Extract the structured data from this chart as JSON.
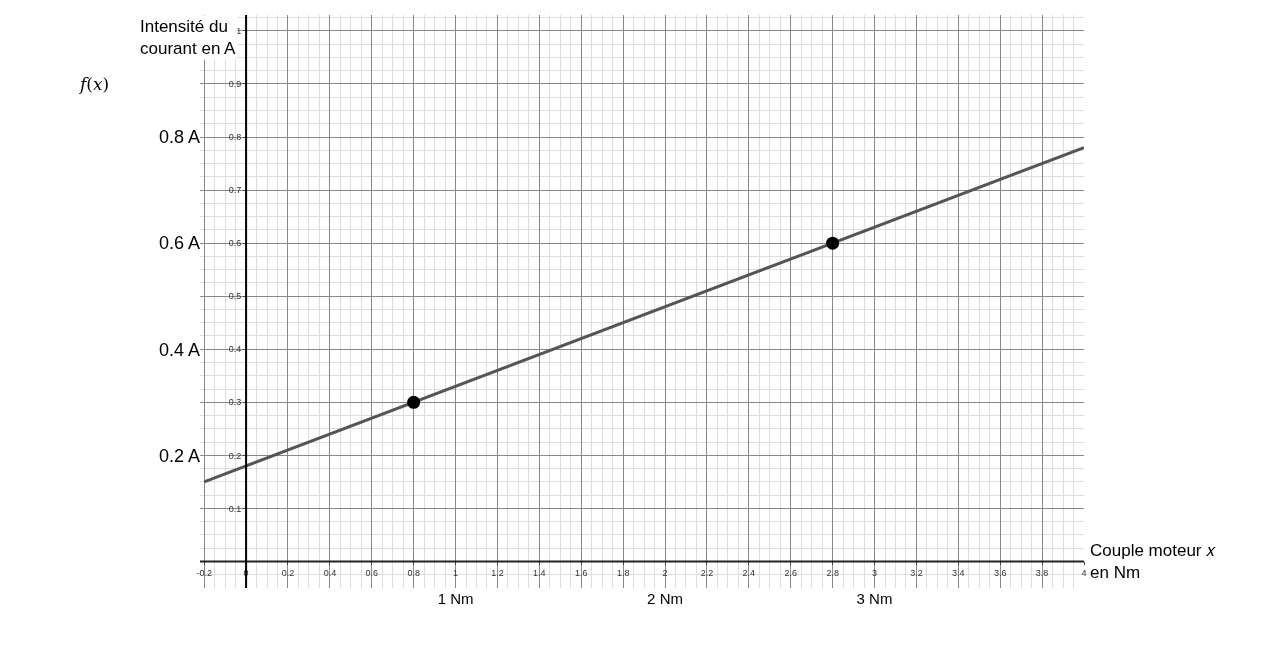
{
  "chart_data": {
    "type": "line",
    "xlabel": "Couple moteur 𝑥\nen Nm",
    "ylabel": "Intensité du\ncourant en A",
    "annotations": [
      "𝑓(𝑥)"
    ],
    "series": [
      {
        "x": [
          -0.2,
          4.0
        ],
        "values": [
          0.15,
          0.78
        ],
        "color": "#555555",
        "marker": "none",
        "line_style": "solid"
      },
      {
        "type": "scatter",
        "x": [
          0.8,
          2.8
        ],
        "values": [
          0.3,
          0.6
        ],
        "color": "#000000",
        "marker": "circle"
      }
    ],
    "xlim": [
      -0.22,
      4.0
    ],
    "ylim": [
      -0.05,
      1.03
    ],
    "xticks": [
      {
        "value": -0.2,
        "label": "-0.2"
      },
      0,
      0.2,
      0.4,
      0.6,
      0.8,
      {
        "value": 1,
        "label": "1"
      },
      1.2,
      1.4,
      1.6,
      1.8,
      2,
      2.2,
      2.4,
      2.6,
      2.8,
      3,
      3.2,
      3.4,
      3.6,
      3.8,
      4
    ],
    "yticks": [
      {
        "value": 0.2,
        "label": "0.2 A"
      },
      {
        "value": 0.4,
        "label": "0.4 A"
      },
      {
        "value": 0.6,
        "label": "0.6 A"
      },
      {
        "value": 0.8,
        "label": "0.8 A"
      }
    ],
    "x2lim": [
      -0.22,
      4.0
    ],
    "x2ticks": [
      {
        "value": 1,
        "label": "1 Nm"
      },
      {
        "value": 2,
        "label": "2 Nm"
      },
      {
        "value": 3,
        "label": "3 Nm"
      }
    ],
    "y2lim": [
      -0.05,
      1.03
    ],
    "y2ticks": [
      0.1,
      0.2,
      0.3,
      0.4,
      0.5,
      0.6,
      0.7,
      0.8,
      0.9,
      1
    ],
    "grid": true
  }
}
